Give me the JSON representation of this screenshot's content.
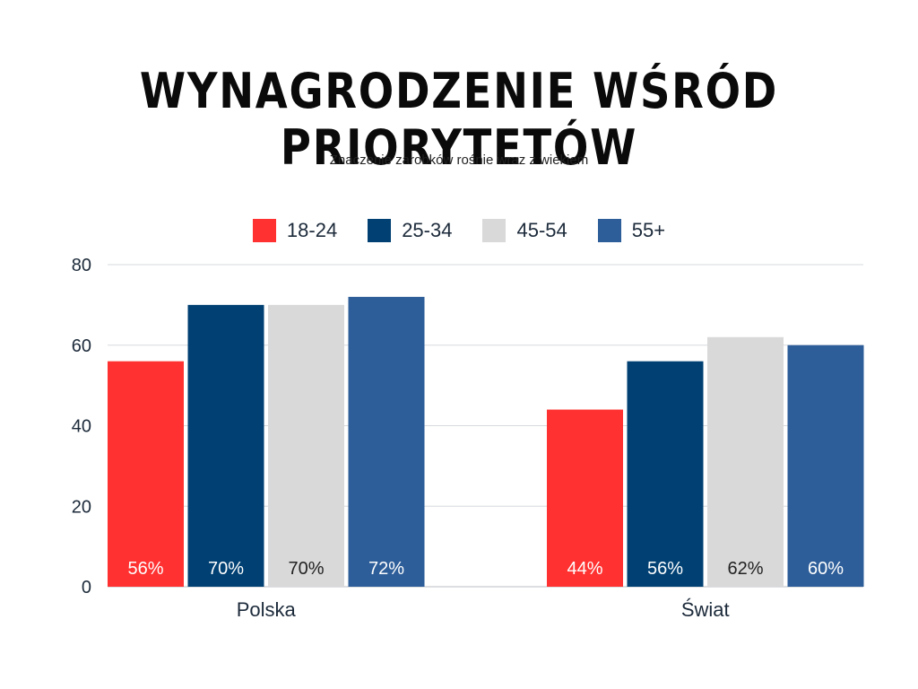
{
  "header": {
    "title": "WYNAGRODZENIE WŚRÓD PRIORYTETÓW",
    "subtitle": "Znaczenie zarobków rośnie wraz z wiekiem"
  },
  "chart_data": {
    "type": "bar",
    "title": "WYNAGRODZENIE WŚRÓD PRIORYTETÓW",
    "subtitle": "Znaczenie zarobków rośnie wraz z wiekiem",
    "categories": [
      "Polska",
      "Świat"
    ],
    "series": [
      {
        "name": "18-24",
        "color": "#ff3131",
        "values": [
          56,
          44
        ],
        "labels": [
          "56%",
          "44%"
        ],
        "label_color": "#ffffff"
      },
      {
        "name": "25-34",
        "color": "#004073",
        "values": [
          70,
          56
        ],
        "labels": [
          "70%",
          "56%"
        ],
        "label_color": "#ffffff"
      },
      {
        "name": "45-54",
        "color": "#d9d9d9",
        "values": [
          70,
          62
        ],
        "labels": [
          "70%",
          "62%"
        ],
        "label_color": "#222222"
      },
      {
        "name": "55+",
        "color": "#2e5e99",
        "values": [
          72,
          60
        ],
        "labels": [
          "72%",
          "60%"
        ],
        "label_color": "#ffffff"
      }
    ],
    "ylim": [
      0,
      80
    ],
    "yticks": [
      "0",
      "20",
      "40",
      "60",
      "80"
    ],
    "ytick_values": [
      0,
      20,
      40,
      60,
      80
    ],
    "grid": true,
    "legend_position": "top-center"
  }
}
